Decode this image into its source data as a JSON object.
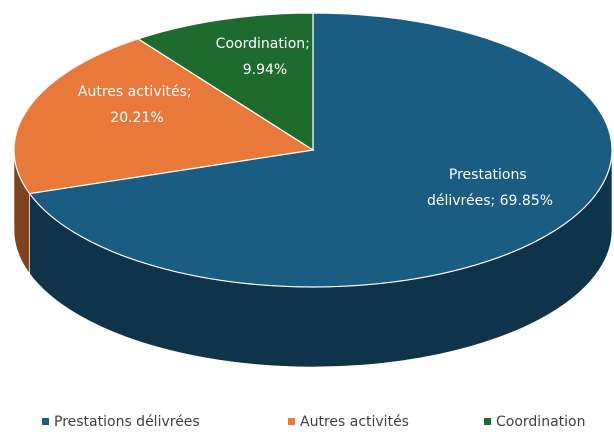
{
  "chart_data": {
    "type": "pie",
    "categories": [
      "Prestations délivrées",
      "Autres activités",
      "Coordination"
    ],
    "values": [
      69.85,
      20.21,
      9.94
    ],
    "value_labels": [
      "Prestations délivrées; 69.85%",
      "Autres activités; 20.21%",
      "Coordination; 9.94%"
    ],
    "colors": [
      "#1b5c82",
      "#e8793a",
      "#1f6b2d"
    ],
    "legend": "bottom"
  }
}
